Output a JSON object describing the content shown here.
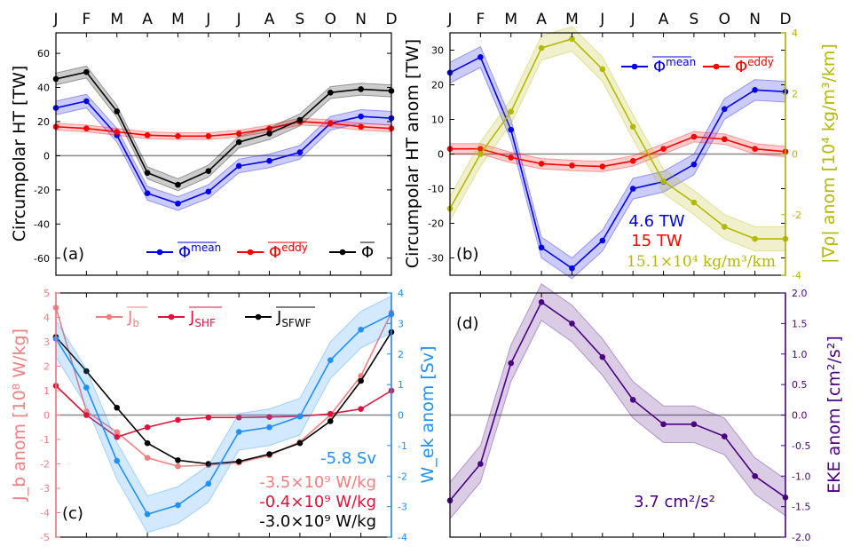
{
  "months": [
    "J",
    "F",
    "M",
    "A",
    "M",
    "J",
    "J",
    "A",
    "S",
    "O",
    "N",
    "D"
  ],
  "colors": {
    "blue": "#0000ee",
    "red": "#ff0000",
    "black": "#000000",
    "olive": "#b5b800",
    "salmon": "#f08080",
    "crimson": "#dc143c",
    "sky": "#1e90ff",
    "purple": "#4b0082",
    "zero": "#888888"
  },
  "panels": {
    "a": {
      "label": "(a)",
      "ylabel": "Circumpolar HT [TW]",
      "legend": [
        {
          "sym": "Φ",
          "sup": "mean",
          "color": "#0000ee"
        },
        {
          "sym": "Φ",
          "sup": "eddy",
          "color": "#ff0000"
        },
        {
          "sym": "Φ",
          "sup": "",
          "color": "#000000"
        }
      ]
    },
    "b": {
      "label": "(b)",
      "ylabel": "Circumpolar HT anom [TW]",
      "right_ylabel": "|∇ρ| anom [10⁴ kg/m³/km]",
      "legend": [
        {
          "sym": "Φ",
          "sup": "mean",
          "color": "#0000ee"
        },
        {
          "sym": "Φ",
          "sup": "eddy",
          "color": "#ff0000"
        }
      ],
      "annotations": [
        {
          "text": "4.6 TW",
          "color": "#0000ee"
        },
        {
          "text": "15 TW",
          "color": "#ff0000"
        },
        {
          "text": "15.1×10⁴ kg/m³/km",
          "color": "#b5b800"
        }
      ]
    },
    "c": {
      "label": "(c)",
      "ylabel": "J_b anom [10⁸ W/kg]",
      "right_ylabel": "W_ek anom [Sv]",
      "legend": [
        {
          "sym": "J",
          "sub": "b",
          "color": "#f08080"
        },
        {
          "sym": "J",
          "sub": "SHF",
          "color": "#dc143c"
        },
        {
          "sym": "J",
          "sub": "SFWF",
          "color": "#000000"
        }
      ],
      "annotations": [
        {
          "text": "-5.8 Sv",
          "color": "#1e90ff"
        },
        {
          "text": "-3.5×10⁹ W/kg",
          "color": "#f08080"
        },
        {
          "text": "-0.4×10⁹ W/kg",
          "color": "#dc143c"
        },
        {
          "text": "-3.0×10⁹ W/kg",
          "color": "#000000"
        }
      ]
    },
    "d": {
      "label": "(d)",
      "right_ylabel": "EKE anom [cm²/s²]",
      "annotations": [
        {
          "text": "3.7 cm²/s²",
          "color": "#4b0082"
        }
      ]
    }
  },
  "chart_data": [
    {
      "panel": "a",
      "type": "line",
      "x": [
        "J",
        "F",
        "M",
        "A",
        "M",
        "J",
        "J",
        "A",
        "S",
        "O",
        "N",
        "D"
      ],
      "ylim": [
        -70,
        72
      ],
      "yticks": [
        -60,
        -40,
        -20,
        0,
        20,
        40,
        60
      ],
      "series": [
        {
          "name": "Φ mean",
          "color": "#0000ee",
          "band": 4,
          "values": [
            28,
            32,
            12,
            -22,
            -28,
            -21,
            -6,
            -3,
            2,
            19,
            23,
            22
          ]
        },
        {
          "name": "Φ eddy",
          "color": "#ff0000",
          "band": 2,
          "values": [
            17,
            16,
            14,
            12,
            11.5,
            11.5,
            13,
            16,
            20,
            19,
            17,
            16
          ]
        },
        {
          "name": "Φ",
          "color": "#000000",
          "band": 3.5,
          "values": [
            45,
            49,
            26,
            -10,
            -17,
            -9,
            8,
            13,
            21,
            37,
            39,
            38
          ]
        }
      ]
    },
    {
      "panel": "b",
      "type": "line",
      "x": [
        "J",
        "F",
        "M",
        "A",
        "M",
        "J",
        "J",
        "A",
        "S",
        "O",
        "N",
        "D"
      ],
      "ylim": [
        -35,
        35
      ],
      "yticks": [
        -30,
        -20,
        -10,
        0,
        10,
        20,
        30
      ],
      "right_ylim": [
        -4,
        4
      ],
      "right_yticks": [
        -4,
        -2,
        0,
        2,
        4
      ],
      "series": [
        {
          "name": "Φ mean",
          "color": "#0000ee",
          "axis": "left",
          "band": 3,
          "values": [
            23.5,
            28,
            7,
            -27,
            -33,
            -25,
            -10,
            -8,
            -3,
            13,
            18.5,
            18
          ]
        },
        {
          "name": "Φ eddy",
          "color": "#ff0000",
          "axis": "left",
          "band": 1.5,
          "values": [
            1.5,
            1.5,
            -1,
            -2.8,
            -3.3,
            -3.6,
            -2,
            1.5,
            5,
            4.3,
            1.5,
            0.7
          ]
        },
        {
          "name": "|∇ρ|",
          "color": "#b5b800",
          "axis": "right",
          "band": 0.4,
          "values": [
            -1.8,
            0,
            1.4,
            3.5,
            3.8,
            2.8,
            0.9,
            -0.9,
            -1.6,
            -2.4,
            -2.8,
            -2.8
          ]
        }
      ]
    },
    {
      "panel": "c",
      "type": "line",
      "x": [
        "J",
        "F",
        "M",
        "A",
        "M",
        "J",
        "J",
        "A",
        "S",
        "O",
        "N",
        "D"
      ],
      "ylim": [
        -5,
        5
      ],
      "yticks": [
        -5,
        -4,
        -3,
        -2,
        -1,
        0,
        1,
        2,
        3,
        4,
        5
      ],
      "right_ylim": [
        -4,
        4
      ],
      "right_yticks": [
        -4,
        -3,
        -2,
        -1,
        0,
        1,
        2,
        3,
        4
      ],
      "series": [
        {
          "name": "J_b",
          "color": "#f08080",
          "axis": "left",
          "values": [
            4.4,
            0.15,
            -0.7,
            -1.75,
            -2.1,
            -2.05,
            -1.95,
            -1.65,
            -1.1,
            0,
            1.6,
            4.2
          ]
        },
        {
          "name": "J_SHF",
          "color": "#dc143c",
          "axis": "left",
          "values": [
            1.2,
            0.0,
            -0.9,
            -0.5,
            -0.2,
            -0.1,
            -0.1,
            -0.08,
            -0.05,
            0.05,
            0.25,
            1.0
          ]
        },
        {
          "name": "J_SFWF",
          "color": "#000000",
          "axis": "left",
          "values": [
            3.2,
            1.8,
            0.3,
            -1.15,
            -1.85,
            -2.0,
            -1.9,
            -1.6,
            -1.15,
            -0.25,
            1.4,
            3.4
          ]
        },
        {
          "name": "W_ek",
          "color": "#1e90ff",
          "axis": "right",
          "band": 0.6,
          "values": [
            2.5,
            0.9,
            -1.5,
            -3.25,
            -2.95,
            -2.25,
            -0.55,
            -0.4,
            -0.05,
            1.8,
            2.8,
            3.3
          ]
        }
      ]
    },
    {
      "panel": "d",
      "type": "line",
      "x": [
        "J",
        "F",
        "M",
        "A",
        "M",
        "J",
        "J",
        "A",
        "S",
        "O",
        "N",
        "D"
      ],
      "ylim": [
        -2.0,
        2.0
      ],
      "right_yticks": [
        -2.0,
        -1.5,
        -1.0,
        -0.5,
        0.0,
        0.5,
        1.0,
        1.5,
        2.0
      ],
      "series": [
        {
          "name": "EKE",
          "color": "#4b0082",
          "axis": "right",
          "band": 0.3,
          "values": [
            -1.4,
            -0.8,
            0.85,
            1.85,
            1.5,
            0.95,
            0.25,
            -0.15,
            -0.15,
            -0.35,
            -1.0,
            -1.35
          ]
        }
      ]
    }
  ]
}
